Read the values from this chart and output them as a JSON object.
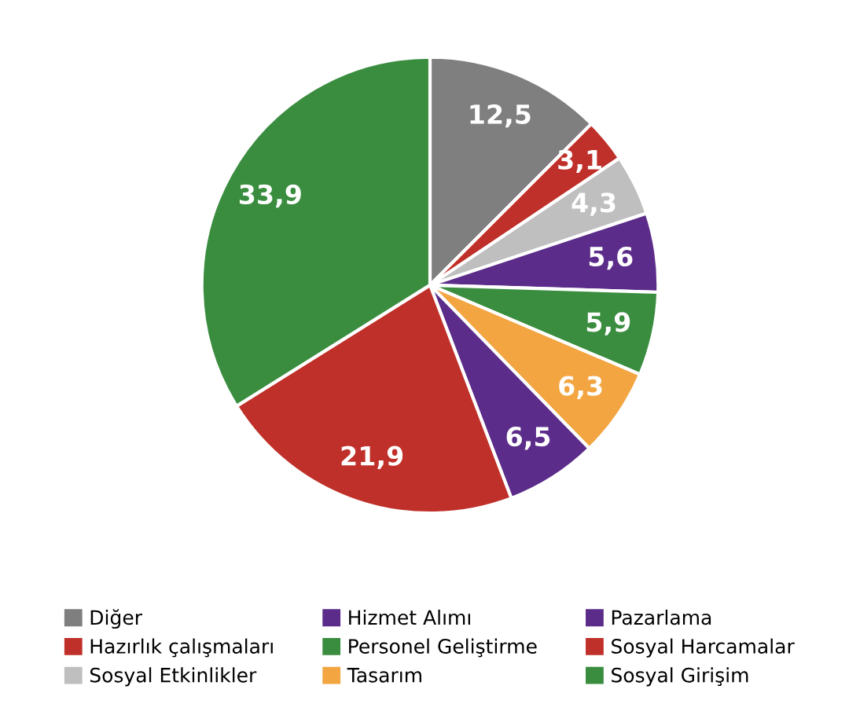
{
  "chart_data": {
    "type": "pie",
    "categories": [
      "Diğer",
      "Hazırlık çalışmaları",
      "Sosyal Etkinlikler",
      "Hizmet Alımı",
      "Personel Geliştirme",
      "Tasarım",
      "Pazarlama",
      "Sosyal Harcamalar",
      "Sosyal Girişim"
    ],
    "values": [
      12.5,
      3.1,
      4.3,
      5.6,
      5.9,
      6.3,
      6.5,
      21.9,
      33.9
    ],
    "colors": [
      "#7f7f7f",
      "#c0302a",
      "#bfbfbf",
      "#5b2c8a",
      "#3a8d3f",
      "#f2a541",
      "#5b2c8a",
      "#c0302a",
      "#3a8d3f"
    ],
    "value_labels": [
      "12,5",
      "3,1",
      "4,3",
      "5,6",
      "5,9",
      "6,3",
      "6,5",
      "21,9",
      "33,9"
    ],
    "legend": "bottom"
  }
}
